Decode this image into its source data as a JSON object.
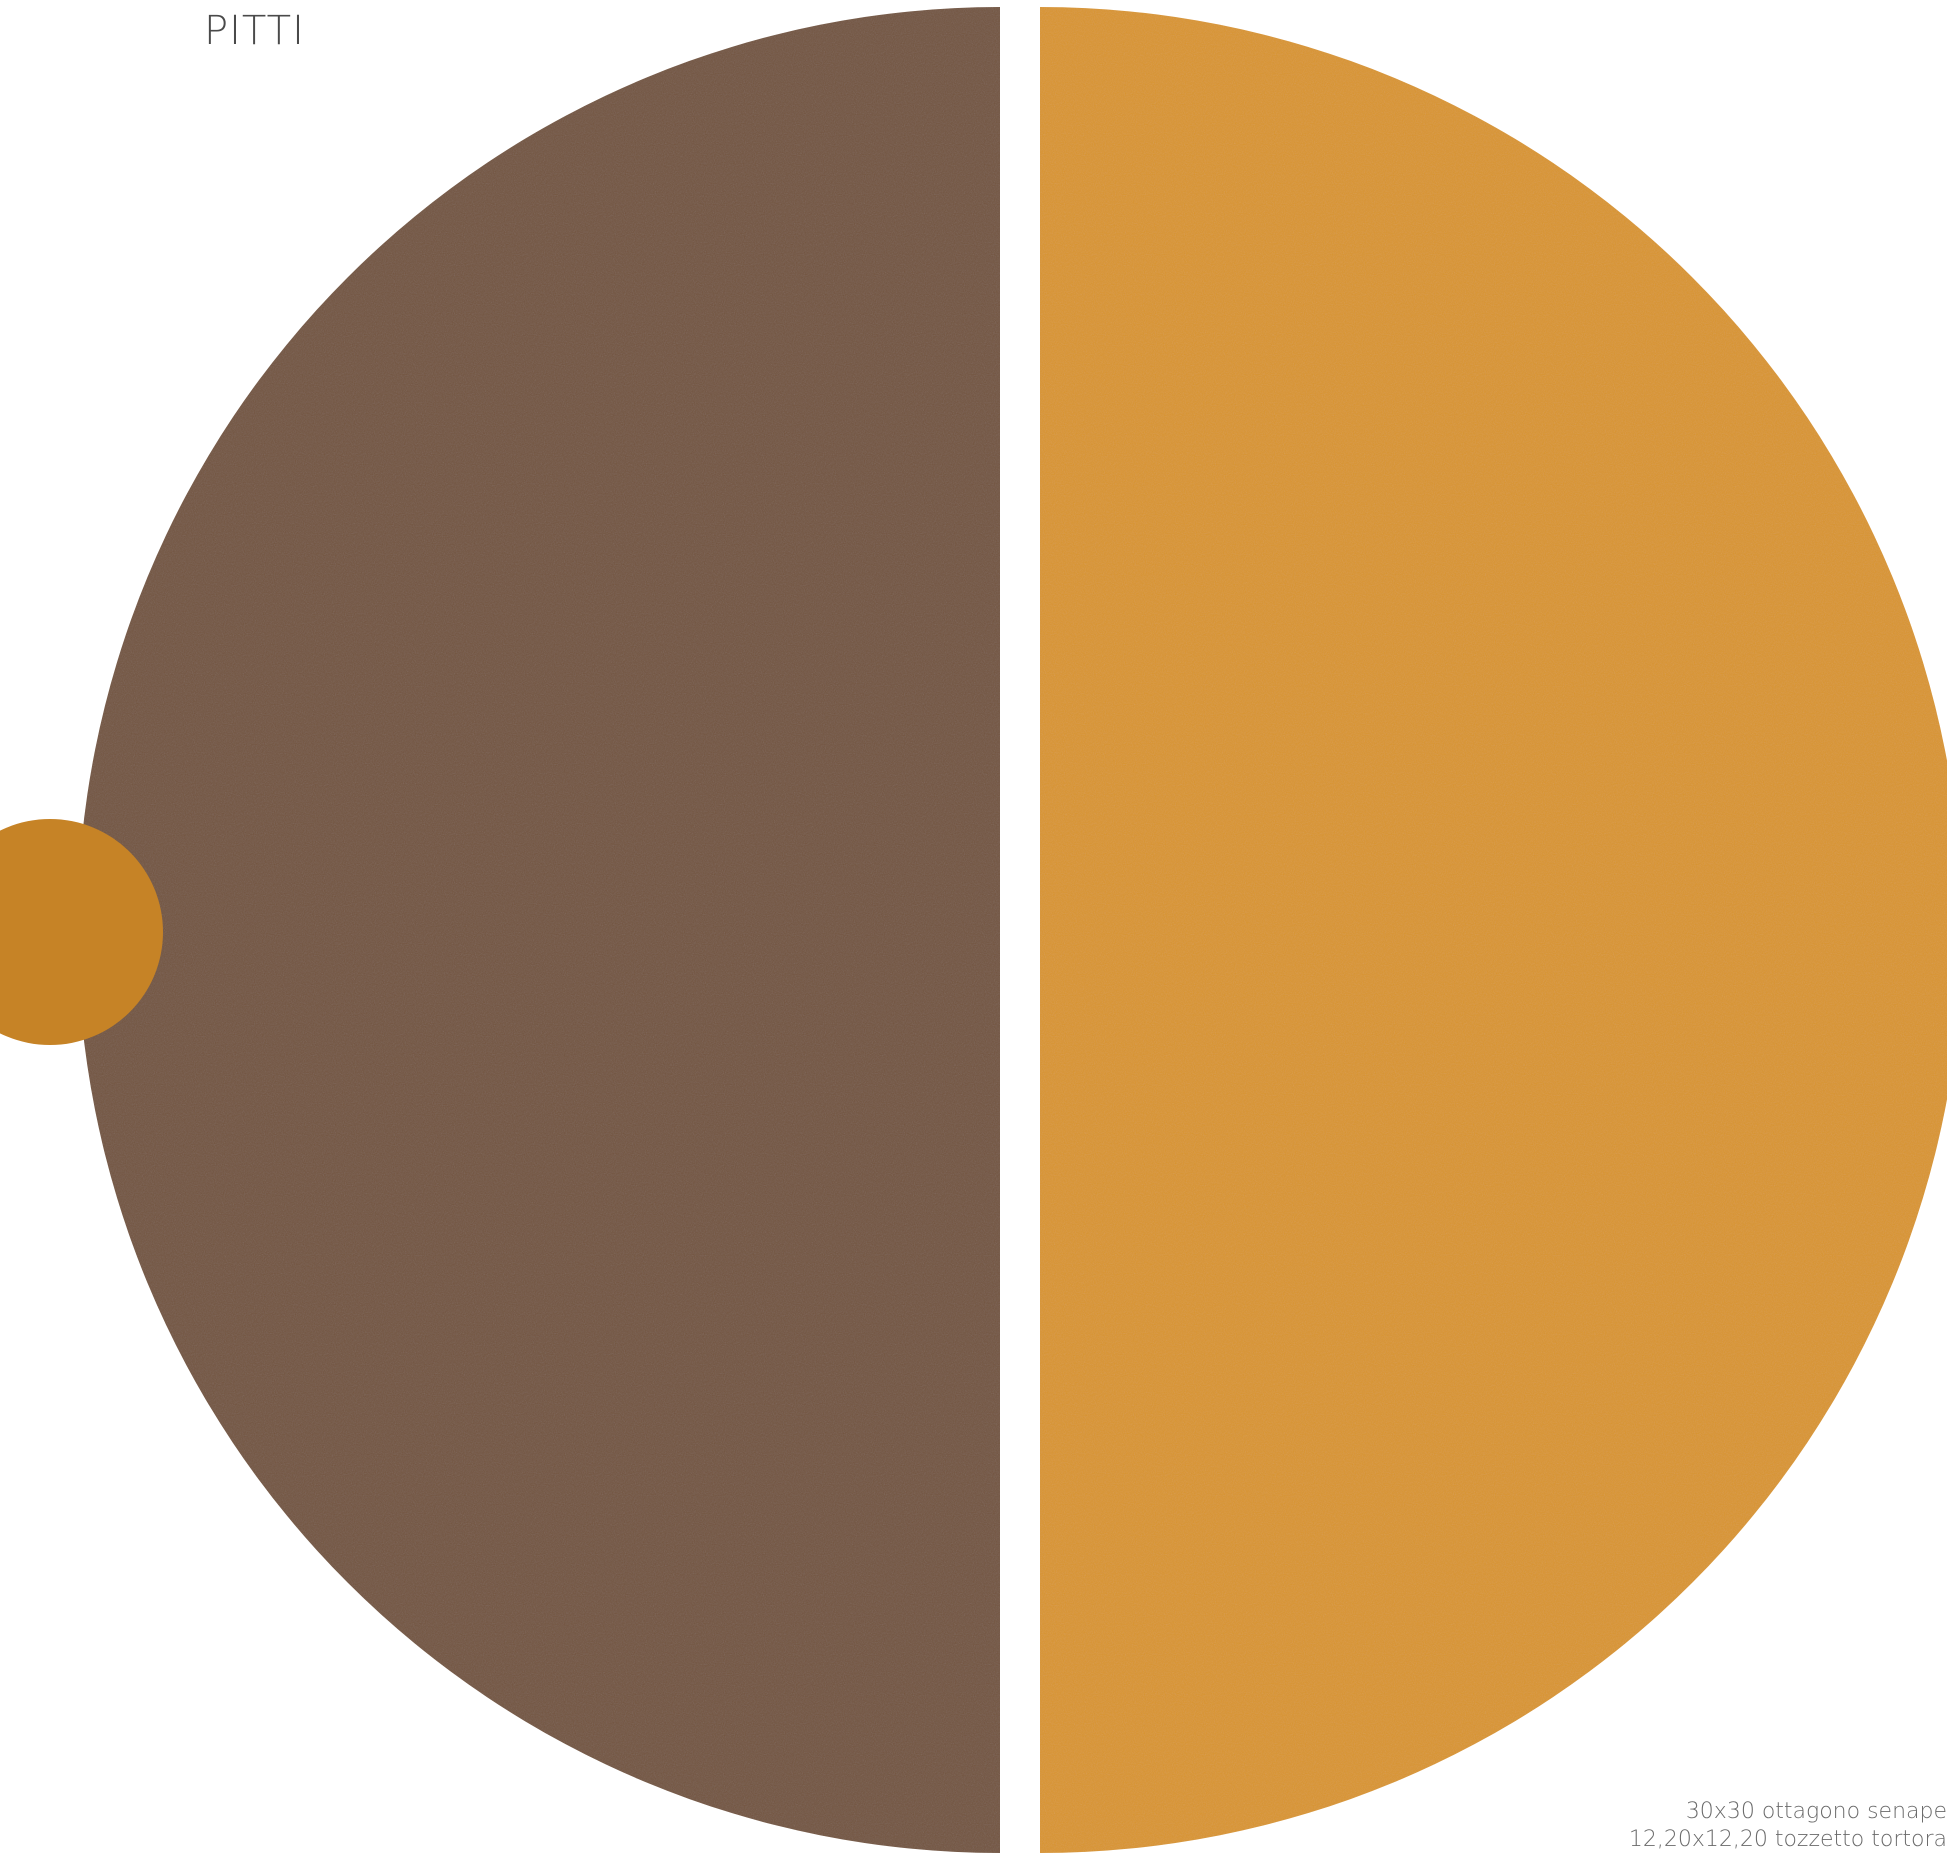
{
  "collection_name": "PITTI",
  "colors": {
    "tortora_half": "#73553f",
    "senape_half": "#d9952f",
    "accent_dot": "#c68326",
    "background": "#ffffff"
  },
  "caption": {
    "line1": "30x30 ottagono senape",
    "line2": "12,20x12,20 tozzetto tortora"
  }
}
